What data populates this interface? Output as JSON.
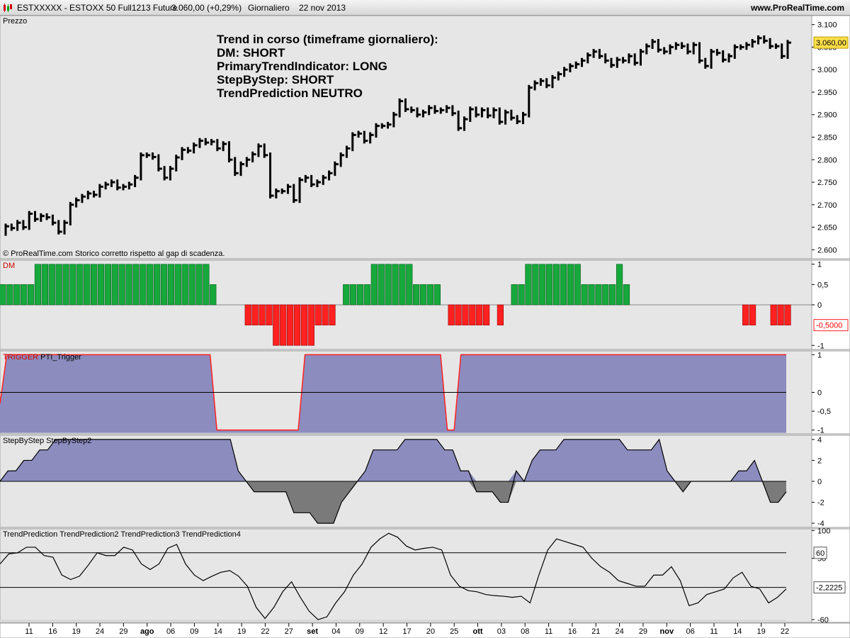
{
  "header": {
    "symbol": "ESTXXXXX - ESTOXX 50 Full1213 Future",
    "last": "3.060,00 (+0,29%)",
    "timeframe": "Giornaliero",
    "date": "22 nov 2013",
    "site": "www.ProRealTime.com"
  },
  "chart_data": [
    {
      "type": "bar",
      "name": "price",
      "panel_title": "Prezzo",
      "copyright": "© ProRealTime.com  Storico corretto rispetto al gap di scadenza.",
      "annotation": [
        "Trend in corso (timeframe giornaliero):",
        "DM: SHORT",
        "PrimaryTrendIndicator: LONG",
        "StepByStep: SHORT",
        "TrendPrediction NEUTRO"
      ],
      "ylim": [
        2580,
        3120
      ],
      "yticks": [
        2600,
        2650,
        2700,
        2750,
        2800,
        2850,
        2900,
        2950,
        3000,
        3050,
        3100
      ],
      "ytick_labels": [
        "2.600",
        "2.650",
        "2.700",
        "2.750",
        "2.800",
        "2.850",
        "2.900",
        "2.950",
        "3.000",
        "3.050",
        "3.100"
      ],
      "last_value_label": "3.060,00",
      "last_value": 3060,
      "close": [
        2652,
        2648,
        2660,
        2650,
        2680,
        2668,
        2675,
        2672,
        2660,
        2640,
        2660,
        2700,
        2710,
        2718,
        2725,
        2722,
        2740,
        2745,
        2750,
        2738,
        2740,
        2745,
        2760,
        2810,
        2810,
        2806,
        2780,
        2760,
        2780,
        2805,
        2822,
        2820,
        2832,
        2842,
        2838,
        2840,
        2825,
        2835,
        2800,
        2770,
        2790,
        2800,
        2812,
        2830,
        2810,
        2720,
        2730,
        2730,
        2740,
        2710,
        2755,
        2760,
        2745,
        2750,
        2760,
        2770,
        2790,
        2810,
        2825,
        2855,
        2858,
        2842,
        2855,
        2875,
        2875,
        2878,
        2900,
        2930,
        2912,
        2910,
        2900,
        2905,
        2915,
        2908,
        2910,
        2915,
        2903,
        2870,
        2890,
        2912,
        2900,
        2910,
        2898,
        2910,
        2884,
        2905,
        2893,
        2885,
        2900,
        2960,
        2970,
        2975,
        2965,
        2982,
        2990,
        3000,
        3008,
        3012,
        3020,
        3032,
        3040,
        3030,
        3020,
        3010,
        3022,
        3020,
        3030,
        3015,
        3040,
        3052,
        3062,
        3044,
        3040,
        3050,
        3055,
        3052,
        3040,
        3055,
        3020,
        3008,
        3040,
        3037,
        3022,
        3030,
        3050,
        3050,
        3055,
        3062,
        3070,
        3064,
        3052,
        3052,
        3030,
        3060
      ],
      "x_tick_labels": [
        "11",
        "16",
        "19",
        "24",
        "29",
        "ago",
        "06",
        "09",
        "14",
        "19",
        "22",
        "27",
        "set",
        "04",
        "09",
        "12",
        "17",
        "20",
        "25",
        "ott",
        "03",
        "08",
        "11",
        "16",
        "21",
        "24",
        "29",
        "nov",
        "06",
        "11",
        "14",
        "19",
        "22"
      ]
    },
    {
      "type": "bar",
      "name": "DM",
      "panel_title": "DM",
      "ylim": [
        -1.1,
        1.1
      ],
      "yticks": [
        1,
        0.5,
        0,
        -1
      ],
      "ytick_labels": [
        "1",
        "0,5",
        "0",
        "-1"
      ],
      "last_value_label": "-0,5000",
      "last_value": -0.5,
      "values": [
        0.5,
        0.5,
        0.5,
        0.5,
        0.5,
        1,
        1,
        1,
        1,
        1,
        1,
        1,
        1,
        1,
        1,
        1,
        1,
        1,
        1,
        1,
        1,
        1,
        1,
        1,
        1,
        1,
        1,
        1,
        1,
        1,
        0.5,
        0,
        0,
        0,
        0,
        -0.5,
        -0.5,
        -0.5,
        -0.5,
        -1,
        -1,
        -1,
        -1,
        -1,
        -1,
        -0.5,
        -0.5,
        -0.5,
        0,
        0.5,
        0.5,
        0.5,
        0.5,
        1,
        1,
        1,
        1,
        1,
        1,
        0.5,
        0.5,
        0.5,
        0.5,
        0,
        -0.5,
        -0.5,
        -0.5,
        -0.5,
        -0.5,
        -0.5,
        0,
        -0.5,
        0,
        0.5,
        0.5,
        1,
        1,
        1,
        1,
        1,
        1,
        1,
        1,
        0.5,
        0.5,
        0.5,
        0.5,
        0.5,
        1,
        0.5,
        0,
        0,
        0,
        0,
        0,
        0,
        0,
        0,
        0,
        0,
        0,
        0,
        0,
        0,
        0,
        0,
        -0.5,
        -0.5,
        0,
        0,
        -0.5,
        -0.5,
        -0.5
      ]
    },
    {
      "type": "area",
      "name": "PTI_Trigger",
      "panel_title": "TRIGGER PTI_Trigger",
      "ylim": [
        -1.1,
        1.1
      ],
      "yticks": [
        1,
        0,
        -0.5,
        -1
      ],
      "ytick_labels": [
        "1",
        "0",
        "-0,5",
        "-1"
      ],
      "values": [
        -0.3,
        1,
        1,
        1,
        1,
        1,
        1,
        1,
        1,
        1,
        1,
        1,
        1,
        1,
        1,
        1,
        1,
        1,
        1,
        1,
        1,
        1,
        1,
        1,
        1,
        1,
        1,
        1,
        1,
        1,
        1,
        1,
        -1,
        -1,
        -1,
        -1,
        -1,
        -1,
        -1,
        -1,
        -1,
        -1,
        -1,
        -1,
        -1,
        1,
        1,
        1,
        1,
        1,
        1,
        1,
        1,
        1,
        1,
        1,
        1,
        1,
        1,
        1,
        1,
        1,
        1,
        1,
        1,
        1,
        -1,
        -1,
        1,
        1,
        1,
        1,
        1,
        1,
        1,
        1,
        1,
        1,
        1,
        1,
        1,
        1,
        1,
        1,
        1,
        1,
        1,
        1,
        1,
        1,
        1,
        1,
        1,
        1,
        1,
        1,
        1,
        1,
        1,
        1,
        1,
        1,
        1,
        1,
        1,
        1,
        1,
        1,
        1,
        1,
        1,
        1,
        1,
        1,
        1,
        1,
        1
      ]
    },
    {
      "type": "area",
      "name": "StepByStep",
      "panel_title": "StepByStep StepByStep2",
      "ylim": [
        -4.4,
        4.4
      ],
      "yticks": [
        4,
        2,
        0,
        -2,
        -4
      ],
      "ytick_labels": [
        "4",
        "2",
        "0",
        "-2",
        "-4"
      ],
      "values": [
        0,
        1,
        1,
        2,
        2,
        3,
        3,
        4,
        4,
        4,
        4,
        4,
        4,
        4,
        4,
        4,
        4,
        4,
        4,
        4,
        4,
        4,
        4,
        4,
        4,
        4,
        4,
        4,
        4,
        4,
        1,
        0,
        -1,
        -1,
        -1,
        -1,
        -1,
        -3,
        -3,
        -3,
        -4,
        -4,
        -4,
        -2,
        -1,
        0,
        1,
        3,
        3,
        3,
        3,
        4,
        4,
        4,
        4,
        4,
        3,
        3,
        1,
        1,
        -1,
        -1,
        -1,
        -2,
        -2,
        1,
        0,
        2,
        3,
        3,
        3,
        4,
        4,
        4,
        4,
        4,
        4,
        4,
        4,
        3,
        3,
        3,
        3,
        4,
        1,
        0,
        -1,
        0,
        0,
        0,
        0,
        0,
        0,
        1,
        1,
        2,
        0,
        -2,
        -2,
        -1
      ]
    },
    {
      "type": "line",
      "name": "TrendPrediction",
      "panel_title": "TrendPrediction TrendPrediction2 TrendPrediction3 TrendPrediction4",
      "ylim": [
        -65,
        103
      ],
      "yticks": [
        100,
        50,
        -60
      ],
      "ytick_labels": [
        "100",
        "50",
        "-60"
      ],
      "level_lines": [
        60,
        -2.2225
      ],
      "level_labels": [
        "60",
        "-2,2225"
      ],
      "values": [
        40,
        58,
        60,
        70,
        70,
        55,
        52,
        20,
        12,
        18,
        38,
        60,
        55,
        55,
        70,
        65,
        40,
        30,
        40,
        68,
        75,
        40,
        20,
        10,
        18,
        25,
        28,
        18,
        0,
        -38,
        -58,
        -38,
        -10,
        8,
        -20,
        -45,
        -60,
        -55,
        -30,
        -10,
        20,
        40,
        70,
        85,
        95,
        88,
        72,
        65,
        68,
        70,
        65,
        20,
        0,
        -8,
        -10,
        -15,
        -17,
        -18,
        -20,
        -18,
        -30,
        20,
        65,
        85,
        80,
        75,
        70,
        50,
        35,
        25,
        10,
        5,
        0,
        0,
        20,
        20,
        35,
        10,
        -35,
        -30,
        -15,
        -10,
        -5,
        15,
        25,
        0,
        -5,
        -30,
        -20,
        -5
      ]
    }
  ]
}
